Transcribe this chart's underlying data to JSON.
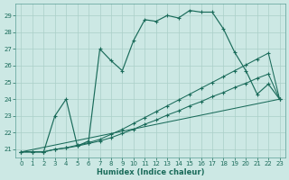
{
  "xlabel": "Humidex (Indice chaleur)",
  "bg_color": "#cce8e4",
  "line_color": "#1a6b5a",
  "grid_color": "#aacfc8",
  "xlim": [
    -0.5,
    23.5
  ],
  "ylim": [
    20.5,
    29.7
  ],
  "xticks": [
    0,
    1,
    2,
    3,
    4,
    5,
    6,
    7,
    8,
    9,
    10,
    11,
    12,
    13,
    14,
    15,
    16,
    17,
    18,
    19,
    20,
    21,
    22,
    23
  ],
  "yticks": [
    21,
    22,
    23,
    24,
    25,
    26,
    27,
    28,
    29
  ],
  "line_jagged": {
    "x": [
      0,
      1,
      2,
      3,
      4,
      5,
      6,
      7,
      8,
      9,
      10,
      11,
      12,
      13,
      14,
      15,
      16,
      17,
      18,
      19,
      20,
      21,
      22,
      23
    ],
    "y": [
      20.85,
      20.85,
      20.85,
      23.0,
      24.0,
      21.2,
      21.5,
      27.0,
      26.3,
      25.7,
      27.5,
      28.75,
      28.65,
      29.0,
      28.85,
      29.3,
      29.2,
      29.2,
      28.2,
      26.8,
      25.7,
      24.3,
      24.9,
      24.0
    ]
  },
  "line_upper": {
    "x": [
      0,
      1,
      2,
      3,
      4,
      5,
      6,
      7,
      8,
      9,
      10,
      11,
      12,
      13,
      14,
      15,
      16,
      17,
      18,
      19,
      20,
      21,
      22,
      23
    ],
    "y": [
      20.85,
      20.85,
      20.85,
      21.0,
      21.1,
      21.25,
      21.4,
      21.6,
      21.9,
      22.2,
      22.55,
      22.9,
      23.25,
      23.6,
      23.95,
      24.3,
      24.65,
      25.0,
      25.35,
      25.7,
      26.05,
      26.4,
      26.75,
      24.0
    ]
  },
  "line_middle": {
    "x": [
      0,
      1,
      2,
      3,
      4,
      5,
      6,
      7,
      8,
      9,
      10,
      11,
      12,
      13,
      14,
      15,
      16,
      17,
      18,
      19,
      20,
      21,
      22,
      23
    ],
    "y": [
      20.85,
      20.85,
      20.85,
      21.0,
      21.08,
      21.2,
      21.35,
      21.5,
      21.7,
      21.95,
      22.2,
      22.5,
      22.75,
      23.05,
      23.3,
      23.6,
      23.85,
      24.15,
      24.4,
      24.7,
      24.95,
      25.25,
      25.5,
      24.0
    ]
  },
  "line_bottom": {
    "x": [
      0,
      23
    ],
    "y": [
      20.85,
      24.0
    ]
  }
}
